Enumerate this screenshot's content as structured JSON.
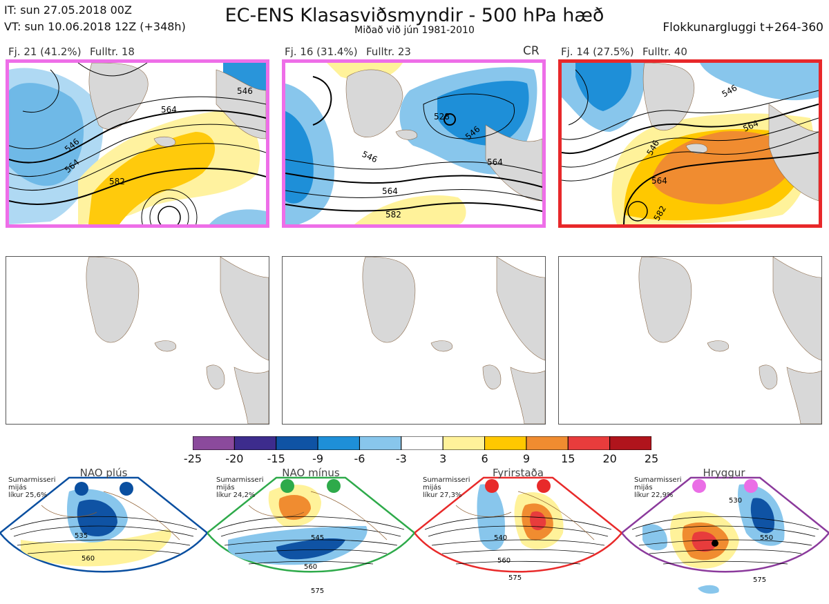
{
  "header": {
    "it_line": "IT: sun 27.05.2018 00Z",
    "vt_line": "VT: sun 10.06.2018 12Z  (+348h)",
    "title": "EC-ENS Klasasviðsmyndir - 500 hPa hæð",
    "subtitle": "Miðað við jún 1981-2010",
    "window": "Flokkunargluggi t+264-360"
  },
  "panels": [
    {
      "label_fj": "Fj. 21 (41.2%)",
      "label_full": "Fulltr. 18",
      "border": "#ee6ee8",
      "tag": "",
      "contours": [
        "546",
        "564",
        "582",
        "564",
        "546"
      ]
    },
    {
      "label_fj": "Fj. 16 (31.4%)",
      "label_full": "Fulltr. 23",
      "border": "#ee6ee8",
      "tag": "CR",
      "contours": [
        "528",
        "546",
        "546",
        "564",
        "564",
        "582"
      ]
    },
    {
      "label_fj": "Fj. 14 (27.5%)",
      "label_full": "Fulltr. 40",
      "border": "#e8282a",
      "tag": "",
      "contours": [
        "546",
        "564",
        "546",
        "564",
        "582"
      ]
    }
  ],
  "chart_data": {
    "type": "heatmap",
    "title": "EC-ENS Klasasviðsmyndir - 500 hPa hæð",
    "colorbar": {
      "ticks": [
        "-25",
        "-20",
        "-15",
        "-9",
        "-6",
        "-3",
        "3",
        "6",
        "9",
        "15",
        "20",
        "25"
      ],
      "colors": [
        "#8b4a9c",
        "#3d2c8d",
        "#0f53a4",
        "#1e8fd8",
        "#88c6ec",
        "#ffffff",
        "#fff29a",
        "#ffc800",
        "#f08c30",
        "#e83c3c",
        "#b0141c"
      ]
    }
  },
  "regimes": [
    {
      "name": "NAO plús",
      "info": [
        "Sumarmisseri",
        "mijás",
        "líkur 25,6%"
      ],
      "color": "#0a4fa0",
      "contours": [
        "535",
        "560"
      ]
    },
    {
      "name": "NAO mínus",
      "info": [
        "Sumarmisseri",
        "mijás",
        "líkur 24,2%"
      ],
      "color": "#2eaa4a",
      "contours": [
        "545",
        "560",
        "575"
      ]
    },
    {
      "name": "Fyrirstaða",
      "info": [
        "Sumarmisseri",
        "mijás",
        "líkur 27,3%"
      ],
      "color": "#e82a2a",
      "contours": [
        "540",
        "560",
        "575"
      ]
    },
    {
      "name": "Hryggur",
      "info": [
        "Sumarmisseri",
        "mijás",
        "líkur 22,9%"
      ],
      "color": "#ea6ee6",
      "contours": [
        "530",
        "550",
        "575"
      ]
    }
  ]
}
